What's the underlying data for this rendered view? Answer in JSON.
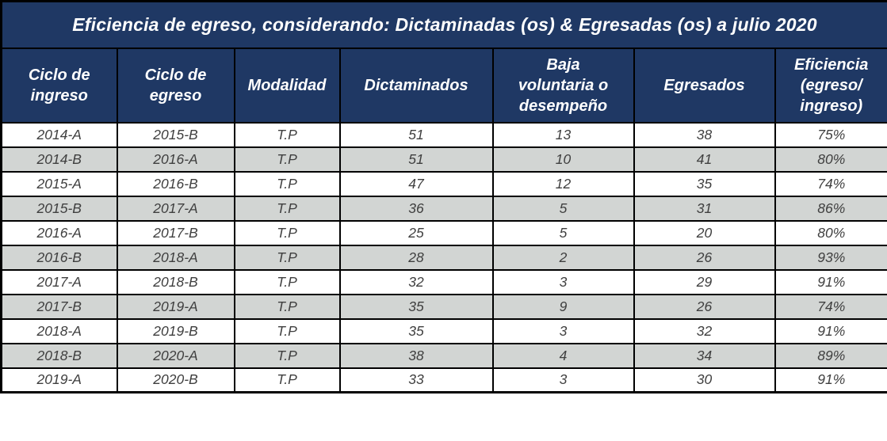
{
  "chart_data": {
    "type": "table",
    "title": "Eficiencia de egreso, considerando: Dictaminadas (os) & Egresadas (os) a julio 2020",
    "columns": [
      "Ciclo de\ningreso",
      "Ciclo de\negreso",
      "Modalidad",
      "Dictaminados",
      "Baja\nvoluntaria o\ndesempeño",
      "Egresados",
      "Eficiencia\n(egreso/\ningreso)"
    ],
    "column_names_flat": [
      "Ciclo de ingreso",
      "Ciclo de egreso",
      "Modalidad",
      "Dictaminados",
      "Baja voluntaria o desempeño",
      "Egresados",
      "Eficiencia (egreso/ingreso)"
    ],
    "rows": [
      [
        "2014-A",
        "2015-B",
        "T.P",
        "51",
        "13",
        "38",
        "75%"
      ],
      [
        "2014-B",
        "2016-A",
        "T.P",
        "51",
        "10",
        "41",
        "80%"
      ],
      [
        "2015-A",
        "2016-B",
        "T.P",
        "47",
        "12",
        "35",
        "74%"
      ],
      [
        "2015-B",
        "2017-A",
        "T.P",
        "36",
        "5",
        "31",
        "86%"
      ],
      [
        "2016-A",
        "2017-B",
        "T.P",
        "25",
        "5",
        "20",
        "80%"
      ],
      [
        "2016-B",
        "2018-A",
        "T.P",
        "28",
        "2",
        "26",
        "93%"
      ],
      [
        "2017-A",
        "2018-B",
        "T.P",
        "32",
        "3",
        "29",
        "91%"
      ],
      [
        "2017-B",
        "2019-A",
        "T.P",
        "35",
        "9",
        "26",
        "74%"
      ],
      [
        "2018-A",
        "2019-B",
        "T.P",
        "35",
        "3",
        "32",
        "91%"
      ],
      [
        "2018-B",
        "2020-A",
        "T.P",
        "38",
        "4",
        "34",
        "89%"
      ],
      [
        "2019-A",
        "2020-B",
        "T.P",
        "33",
        "3",
        "30",
        "91%"
      ]
    ],
    "layout": {
      "row_striping": "white / light-gray alternating",
      "grid": "black solid borders on all cells",
      "text_style": "italic; headers bold white, data gray"
    }
  },
  "colors": {
    "header_bg": "#1f3864",
    "header_text": "#ffffff",
    "row_bg": "#ffffff",
    "row_alt_bg": "#d2d5d3",
    "cell_text": "#3f3f3f",
    "border": "#000000"
  }
}
